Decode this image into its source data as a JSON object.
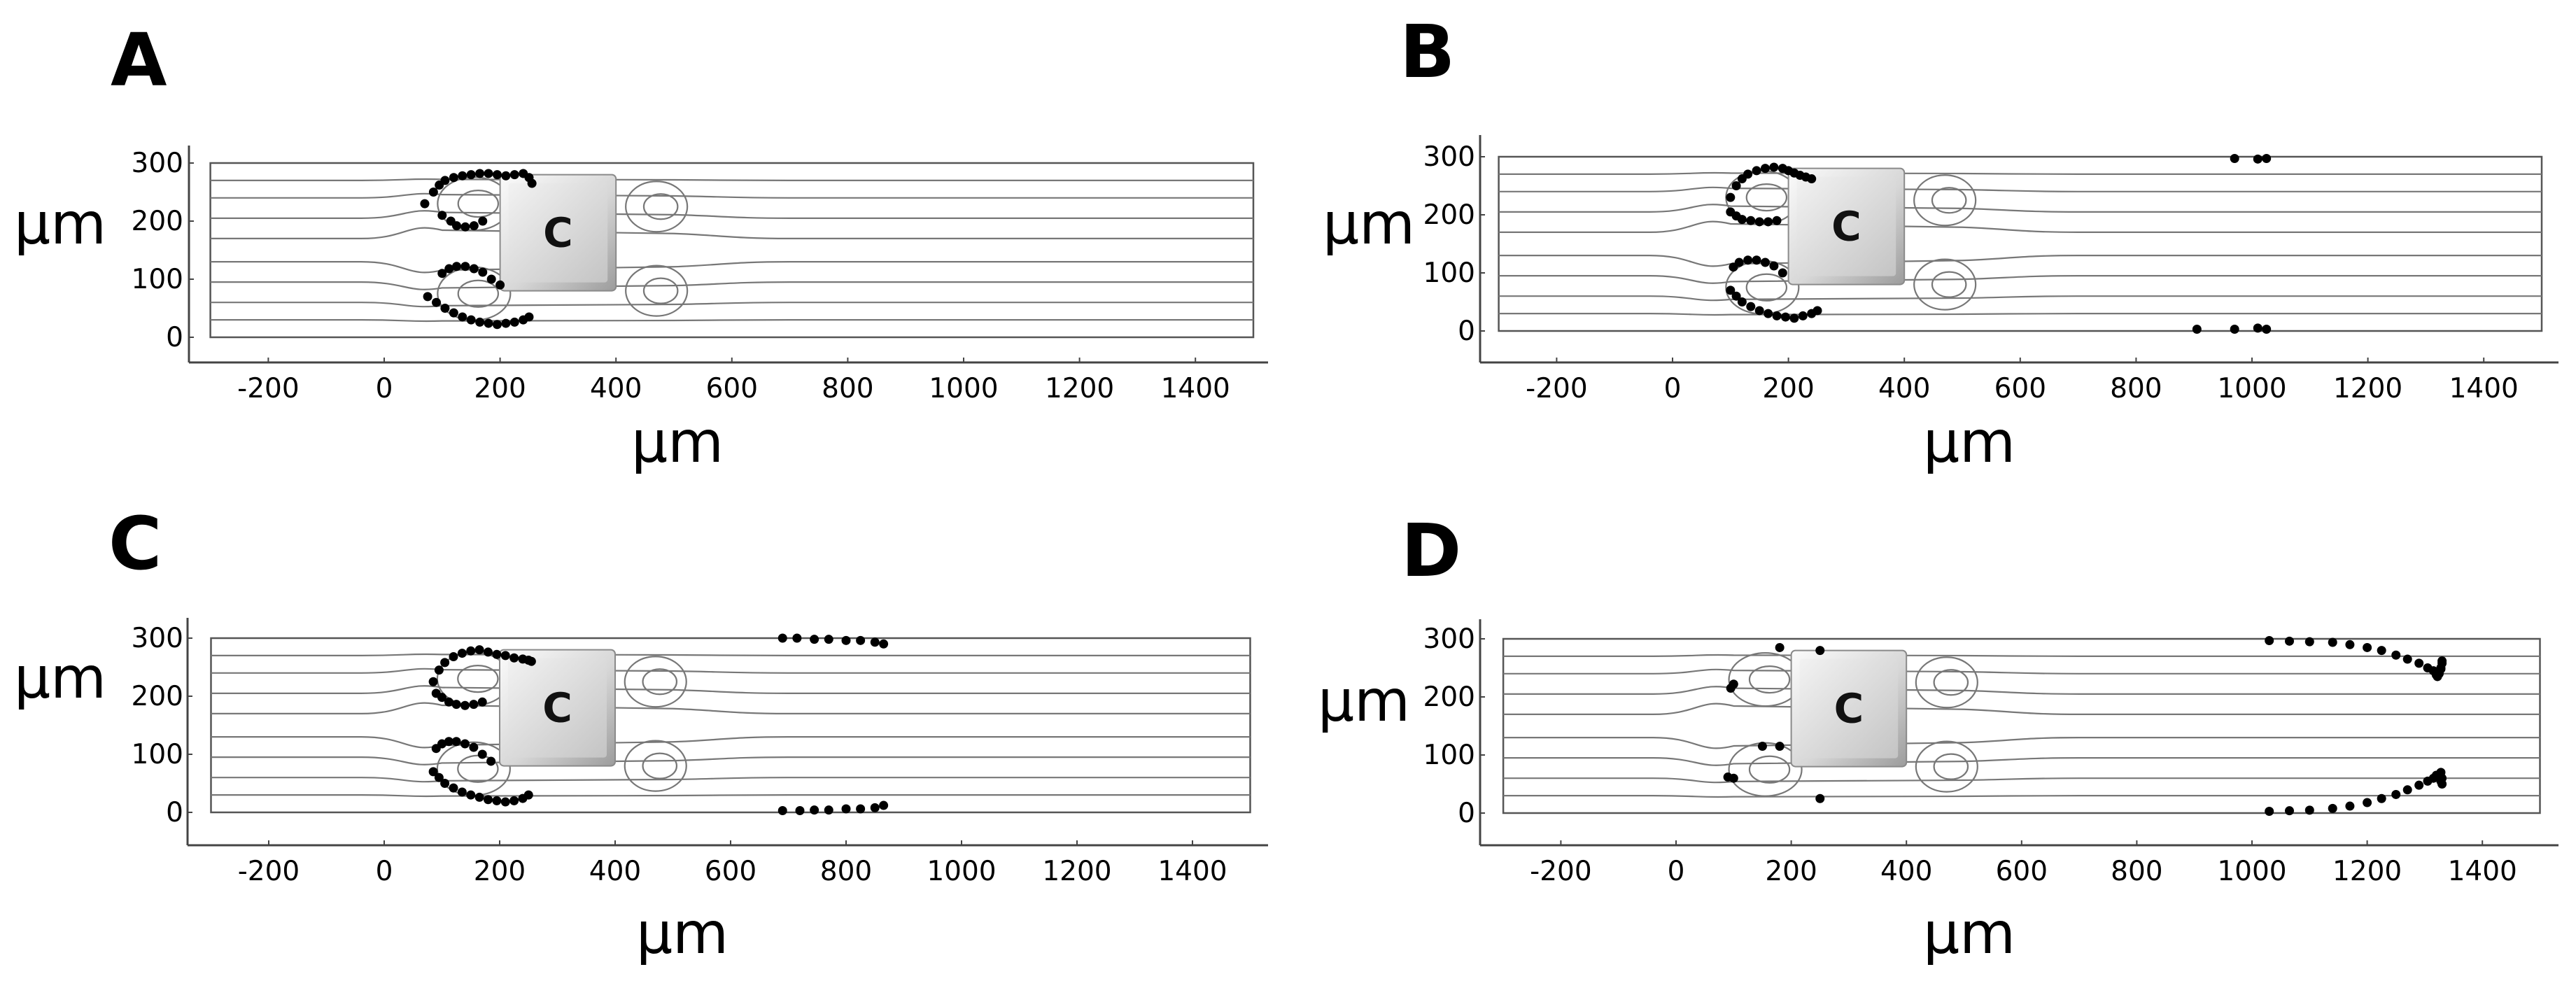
{
  "chart_data": [
    {
      "panel": "A",
      "type": "scatter",
      "xlabel": "µm",
      "ylabel": "µm",
      "xlim": [
        -320,
        1510
      ],
      "ylim": [
        -45,
        330
      ],
      "xticks": [
        -200,
        0,
        200,
        400,
        600,
        800,
        1000,
        1200,
        1400
      ],
      "yticks": [
        0,
        100,
        200,
        300
      ],
      "channel": {
        "x": [
          -300,
          1500
        ],
        "y": [
          0,
          300
        ]
      },
      "obstacle": {
        "label": "C",
        "x": [
          200,
          400
        ],
        "y": [
          80,
          280
        ]
      },
      "particles": {
        "x": [
          70,
          85,
          95,
          105,
          120,
          135,
          150,
          165,
          180,
          195,
          210,
          225,
          240,
          250,
          255,
          100,
          115,
          125,
          140,
          155,
          170,
          75,
          90,
          105,
          120,
          135,
          150,
          165,
          180,
          195,
          210,
          225,
          240,
          250,
          100,
          112,
          125,
          140,
          155,
          170,
          185,
          200
        ],
        "y": [
          230,
          250,
          262,
          270,
          275,
          278,
          280,
          282,
          282,
          280,
          278,
          280,
          282,
          275,
          265,
          210,
          200,
          192,
          190,
          192,
          200,
          70,
          60,
          50,
          42,
          35,
          30,
          26,
          24,
          22,
          24,
          26,
          30,
          35,
          110,
          118,
          122,
          122,
          118,
          112,
          100,
          90
        ]
      }
    },
    {
      "panel": "B",
      "type": "scatter",
      "xlabel": "µm",
      "ylabel": "µm",
      "xlim": [
        -320,
        1510
      ],
      "ylim": [
        -45,
        330
      ],
      "xticks": [
        -200,
        0,
        200,
        400,
        600,
        800,
        1000,
        1200,
        1400
      ],
      "yticks": [
        0,
        100,
        200,
        300
      ],
      "channel": {
        "x": [
          -300,
          1500
        ],
        "y": [
          0,
          300
        ]
      },
      "obstacle": {
        "label": "C",
        "x": [
          200,
          400
        ],
        "y": [
          80,
          280
        ]
      },
      "particles": {
        "x": [
          100,
          110,
          120,
          130,
          145,
          160,
          175,
          190,
          200,
          210,
          220,
          230,
          240,
          100,
          110,
          120,
          135,
          150,
          165,
          180,
          100,
          110,
          120,
          135,
          150,
          165,
          180,
          195,
          210,
          225,
          240,
          250,
          105,
          115,
          130,
          145,
          160,
          175,
          190,
          905,
          970,
          1010,
          1025,
          970,
          1010,
          1025
        ],
        "y": [
          230,
          250,
          262,
          270,
          276,
          280,
          282,
          280,
          276,
          272,
          268,
          265,
          262,
          205,
          198,
          192,
          190,
          188,
          188,
          190,
          70,
          60,
          50,
          42,
          35,
          30,
          26,
          24,
          22,
          26,
          30,
          35,
          110,
          118,
          122,
          122,
          118,
          112,
          100,
          3,
          3,
          5,
          3,
          297,
          296,
          297
        ]
      }
    },
    {
      "panel": "C",
      "type": "scatter",
      "xlabel": "µm",
      "ylabel": "µm",
      "xlim": [
        -320,
        1510
      ],
      "ylim": [
        -45,
        330
      ],
      "xticks": [
        -200,
        0,
        200,
        400,
        600,
        800,
        1000,
        1200,
        1400
      ],
      "yticks": [
        0,
        100,
        200,
        300
      ],
      "channel": {
        "x": [
          -300,
          1500
        ],
        "y": [
          0,
          300
        ]
      },
      "obstacle": {
        "label": "C",
        "x": [
          200,
          400
        ],
        "y": [
          80,
          280
        ]
      },
      "particles": {
        "x": [
          85,
          95,
          105,
          120,
          135,
          150,
          165,
          180,
          195,
          210,
          225,
          240,
          250,
          255,
          90,
          100,
          112,
          125,
          140,
          155,
          170,
          85,
          95,
          105,
          120,
          135,
          150,
          165,
          180,
          195,
          210,
          225,
          240,
          250,
          90,
          100,
          112,
          125,
          140,
          155,
          170,
          185,
          690,
          715,
          745,
          770,
          800,
          825,
          850,
          865,
          690,
          720,
          745,
          770,
          800,
          825,
          850,
          865
        ],
        "y": [
          225,
          245,
          258,
          268,
          274,
          278,
          280,
          276,
          272,
          270,
          266,
          264,
          262,
          260,
          205,
          198,
          190,
          186,
          184,
          186,
          190,
          70,
          60,
          50,
          42,
          35,
          30,
          26,
          22,
          20,
          18,
          20,
          24,
          30,
          110,
          118,
          122,
          122,
          118,
          112,
          100,
          88,
          300,
          300,
          298,
          298,
          296,
          296,
          293,
          290,
          3,
          3,
          4,
          4,
          6,
          6,
          8,
          12
        ]
      }
    },
    {
      "panel": "D",
      "type": "scatter",
      "xlabel": "µm",
      "ylabel": "µm",
      "xlim": [
        -320,
        1510
      ],
      "ylim": [
        -45,
        330
      ],
      "xticks": [
        -200,
        0,
        200,
        400,
        600,
        800,
        1000,
        1200,
        1400
      ],
      "yticks": [
        0,
        100,
        200,
        300
      ],
      "channel": {
        "x": [
          -300,
          1500
        ],
        "y": [
          0,
          300
        ]
      },
      "obstacle": {
        "label": "C",
        "x": [
          200,
          400
        ],
        "y": [
          80,
          280
        ]
      },
      "particles": {
        "x": [
          95,
          100,
          180,
          250,
          90,
          100,
          150,
          180,
          250,
          1030,
          1065,
          1100,
          1140,
          1170,
          1200,
          1225,
          1250,
          1270,
          1290,
          1305,
          1315,
          1320,
          1325,
          1328,
          1330,
          1330,
          1328,
          1322,
          1030,
          1065,
          1100,
          1140,
          1170,
          1200,
          1225,
          1250,
          1270,
          1290,
          1305,
          1315,
          1320,
          1325,
          1328,
          1330,
          1330,
          1328
        ],
        "y": [
          215,
          222,
          285,
          280,
          62,
          60,
          115,
          115,
          25,
          297,
          296,
          295,
          294,
          290,
          285,
          280,
          272,
          265,
          258,
          250,
          245,
          238,
          240,
          250,
          258,
          262,
          248,
          235,
          3,
          4,
          5,
          8,
          12,
          18,
          25,
          32,
          40,
          48,
          55,
          60,
          65,
          60,
          55,
          50,
          60,
          70
        ]
      }
    }
  ]
}
